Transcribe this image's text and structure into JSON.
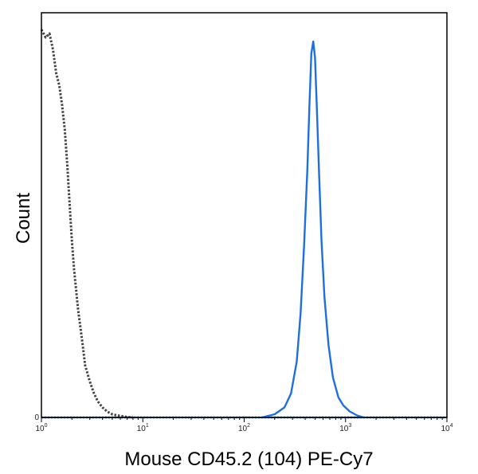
{
  "chart_data": {
    "type": "line",
    "xlabel": "Mouse CD45.2 (104) PE-Cy7",
    "ylabel": "Count",
    "x_scale": "log",
    "xlim": [
      1,
      10000
    ],
    "ylim": [
      0,
      100
    ],
    "grid": false,
    "x_ticks": [
      {
        "base": "10",
        "exp": "0",
        "value": 1
      },
      {
        "base": "10",
        "exp": "1",
        "value": 10
      },
      {
        "base": "10",
        "exp": "2",
        "value": 100
      },
      {
        "base": "10",
        "exp": "3",
        "value": 1000
      },
      {
        "base": "10",
        "exp": "4",
        "value": 10000
      }
    ],
    "y_ticks": [
      {
        "label": "0",
        "value": 0
      }
    ],
    "series": [
      {
        "style": "dotted",
        "color": "#444444",
        "x": [
          1.0,
          1.1,
          1.2,
          1.3,
          1.4,
          1.5,
          1.6,
          1.7,
          1.8,
          1.9,
          2.0,
          2.1,
          2.3,
          2.5,
          2.7,
          3.0,
          3.3,
          3.6,
          4.0,
          4.5,
          5.0,
          5.6,
          6.3,
          7.0,
          8.0
        ],
        "y": [
          97,
          95,
          96,
          92,
          86,
          83,
          78,
          72,
          63,
          53,
          44,
          37,
          27,
          20,
          13,
          9,
          6,
          4,
          2.5,
          1.4,
          0.8,
          0.5,
          0.3,
          0.1,
          0
        ]
      },
      {
        "style": "solid",
        "color": "#1e6fe0",
        "x": [
          150,
          200,
          250,
          290,
          330,
          360,
          390,
          420,
          440,
          460,
          480,
          500,
          520,
          550,
          580,
          620,
          680,
          750,
          850,
          950,
          1100,
          1300,
          1500
        ],
        "y": [
          0,
          0.8,
          2.5,
          6,
          14,
          26,
          43,
          62,
          78,
          91,
          94,
          90,
          78,
          60,
          44,
          30,
          18,
          10,
          5,
          3,
          1.5,
          0.5,
          0
        ]
      }
    ]
  }
}
